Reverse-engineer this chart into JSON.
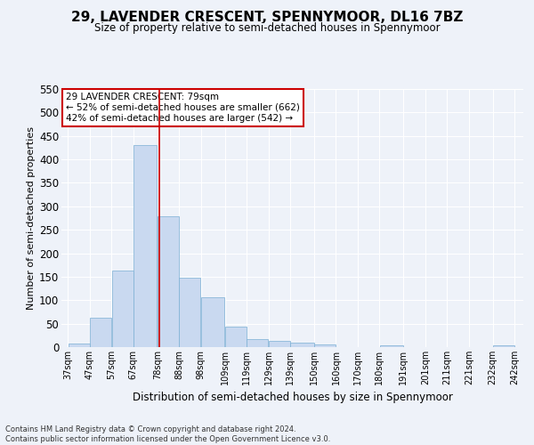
{
  "title": "29, LAVENDER CRESCENT, SPENNYMOOR, DL16 7BZ",
  "subtitle": "Size of property relative to semi-detached houses in Spennymoor",
  "xlabel": "Distribution of semi-detached houses by size in Spennymoor",
  "ylabel": "Number of semi-detached properties",
  "footer_line1": "Contains HM Land Registry data © Crown copyright and database right 2024.",
  "footer_line2": "Contains public sector information licensed under the Open Government Licence v3.0.",
  "annotation_line1": "29 LAVENDER CRESCENT: 79sqm",
  "annotation_line2": "← 52% of semi-detached houses are smaller (662)",
  "annotation_line3": "42% of semi-detached houses are larger (542) →",
  "property_size": 79,
  "bar_left_edges": [
    37,
    47,
    57,
    67,
    78,
    88,
    98,
    109,
    119,
    129,
    139,
    150,
    160,
    170,
    180,
    191,
    201,
    211,
    221,
    232
  ],
  "bar_widths": [
    10,
    10,
    10,
    11,
    10,
    10,
    11,
    10,
    10,
    10,
    11,
    10,
    10,
    10,
    11,
    10,
    10,
    10,
    11,
    10
  ],
  "bar_heights": [
    8,
    62,
    163,
    430,
    278,
    148,
    107,
    43,
    17,
    14,
    10,
    5,
    0,
    0,
    3,
    0,
    0,
    0,
    0,
    4
  ],
  "tick_labels": [
    "37sqm",
    "47sqm",
    "57sqm",
    "67sqm",
    "78sqm",
    "88sqm",
    "98sqm",
    "109sqm",
    "119sqm",
    "129sqm",
    "139sqm",
    "150sqm",
    "160sqm",
    "170sqm",
    "180sqm",
    "191sqm",
    "201sqm",
    "211sqm",
    "221sqm",
    "232sqm",
    "242sqm"
  ],
  "tick_positions": [
    37,
    47,
    57,
    67,
    78,
    88,
    98,
    109,
    119,
    129,
    139,
    150,
    160,
    170,
    180,
    191,
    201,
    211,
    221,
    232,
    242
  ],
  "bar_color": "#c9d9f0",
  "bar_edge_color": "#7bafd4",
  "vline_color": "#cc0000",
  "vline_x": 79,
  "ylim": [
    0,
    550
  ],
  "yticks": [
    0,
    50,
    100,
    150,
    200,
    250,
    300,
    350,
    400,
    450,
    500,
    550
  ],
  "bg_color": "#eef2f9",
  "grid_color": "#ffffff",
  "annotation_box_color": "#ffffff",
  "annotation_box_edge": "#cc0000",
  "title_fontsize": 11,
  "subtitle_fontsize": 9
}
